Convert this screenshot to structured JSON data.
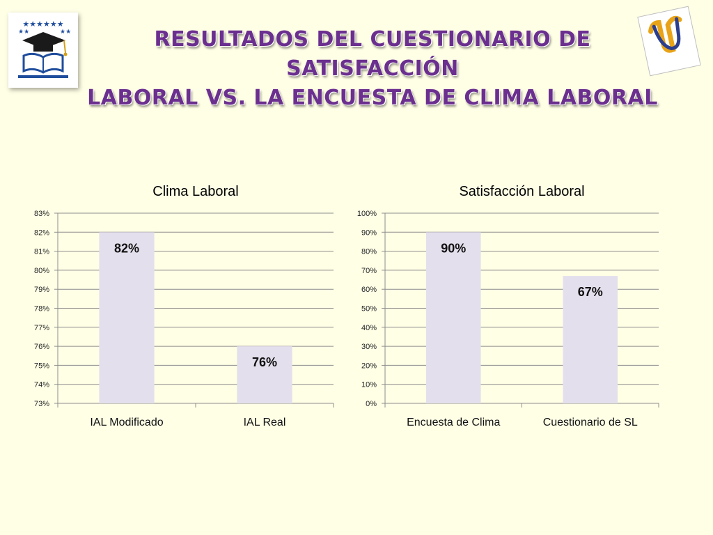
{
  "slide": {
    "title_lines": [
      "RESULTADOS DEL CUESTIONARIO DE SATISFACCIÓN",
      "LABORAL VS. LA ENCUESTA DE CLIMA LABORAL"
    ],
    "logo_left_icon": "graduation-cap-book-stars-icon",
    "logo_right_icon": "stylized-letter-u-logo-icon"
  },
  "colors": {
    "title": "#6b2f8f",
    "bar": "#e4dfec",
    "background": "#ffffe6"
  },
  "chart_data": [
    {
      "type": "bar",
      "title": "Clima Laboral",
      "categories": [
        "IAL Modificado",
        "IAL Real"
      ],
      "values": [
        82,
        76
      ],
      "data_labels": [
        "82%",
        "76%"
      ],
      "ylim": [
        73,
        83
      ],
      "ytick_step": 1,
      "ytick_format": "percent",
      "xlabel": "",
      "ylabel": "",
      "grid": true,
      "legend": "none"
    },
    {
      "type": "bar",
      "title": "Satisfacción Laboral",
      "categories": [
        "Encuesta de Clima",
        "Cuestionario de SL"
      ],
      "values": [
        90,
        67
      ],
      "data_labels": [
        "90%",
        "67%"
      ],
      "ylim": [
        0,
        100
      ],
      "ytick_step": 10,
      "ytick_format": "percent",
      "xlabel": "",
      "ylabel": "",
      "grid": true,
      "legend": "none"
    }
  ]
}
